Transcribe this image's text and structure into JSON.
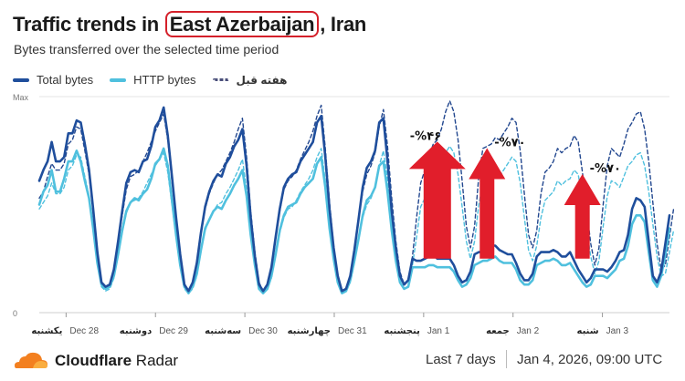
{
  "header": {
    "title_prefix": "Traffic trends in ",
    "title_highlight": "East Azerbaijan",
    "title_suffix": ", Iran",
    "subtitle": "Bytes transferred over the selected time period"
  },
  "legend": {
    "total": "Total bytes",
    "http": "HTTP bytes",
    "prev": "هفته قبل"
  },
  "footer": {
    "brand_bold": "Cloudflare",
    "brand_rest": " Radar",
    "range": "Last 7 days",
    "timestamp": "Jan 4, 2026, 09:00 UTC"
  },
  "colors": {
    "total": "#1f4e9c",
    "http": "#4fc0de",
    "prev_total": "#22478f",
    "prev_http": "#4fc0de",
    "arrow": "#e11e2b",
    "grid": "#e4e4e4",
    "logo": "#f38020"
  },
  "chart_data": {
    "type": "line",
    "ylim": [
      0,
      1
    ],
    "y_tick_labels": [
      "0",
      "Max"
    ],
    "x_tick_labels": [
      {
        "fa": "یکشنبه",
        "en": "Dec 28"
      },
      {
        "fa": "دوشنبه",
        "en": "Dec 29"
      },
      {
        "fa": "سه‌شنبه",
        "en": "Dec 30"
      },
      {
        "fa": "چهارشنبه",
        "en": "Dec 31"
      },
      {
        "fa": "پنجشنبه",
        "en": "Jan 1"
      },
      {
        "fa": "جمعه",
        "en": "Jan 2"
      },
      {
        "fa": "شنبه",
        "en": "Jan 3"
      }
    ],
    "series": [
      {
        "name": "Total bytes",
        "style": "solid",
        "values": [
          0.61,
          0.66,
          0.7,
          0.79,
          0.7,
          0.7,
          0.72,
          0.83,
          0.83,
          0.89,
          0.88,
          0.78,
          0.66,
          0.48,
          0.28,
          0.14,
          0.12,
          0.13,
          0.2,
          0.33,
          0.47,
          0.6,
          0.65,
          0.66,
          0.65,
          0.7,
          0.71,
          0.77,
          0.86,
          0.89,
          0.95,
          0.82,
          0.63,
          0.44,
          0.27,
          0.13,
          0.1,
          0.14,
          0.23,
          0.37,
          0.49,
          0.56,
          0.61,
          0.64,
          0.63,
          0.69,
          0.72,
          0.77,
          0.8,
          0.85,
          0.68,
          0.44,
          0.26,
          0.13,
          0.1,
          0.13,
          0.21,
          0.35,
          0.48,
          0.58,
          0.62,
          0.64,
          0.65,
          0.7,
          0.73,
          0.76,
          0.79,
          0.88,
          0.91,
          0.72,
          0.48,
          0.3,
          0.17,
          0.1,
          0.11,
          0.17,
          0.29,
          0.43,
          0.58,
          0.67,
          0.7,
          0.75,
          0.88,
          0.9,
          0.7,
          0.47,
          0.3,
          0.17,
          0.13,
          0.15,
          0.25,
          0.24,
          0.24,
          0.25,
          0.26,
          0.27,
          0.25,
          0.25,
          0.25,
          0.25,
          0.22,
          0.17,
          0.14,
          0.15,
          0.19,
          0.27,
          0.28,
          0.28,
          0.29,
          0.31,
          0.31,
          0.29,
          0.28,
          0.27,
          0.27,
          0.23,
          0.18,
          0.15,
          0.15,
          0.18,
          0.26,
          0.28,
          0.28,
          0.28,
          0.29,
          0.28,
          0.26,
          0.26,
          0.28,
          0.24,
          0.2,
          0.17,
          0.14,
          0.16,
          0.2,
          0.2,
          0.2,
          0.19,
          0.21,
          0.24,
          0.28,
          0.29,
          0.36,
          0.48,
          0.53,
          0.52,
          0.49,
          0.33,
          0.17,
          0.14,
          0.19,
          0.32,
          0.45
        ]
      },
      {
        "name": "HTTP bytes",
        "style": "solid",
        "values": [
          0.5,
          0.56,
          0.59,
          0.66,
          0.56,
          0.56,
          0.62,
          0.7,
          0.7,
          0.75,
          0.7,
          0.61,
          0.53,
          0.39,
          0.23,
          0.13,
          0.11,
          0.12,
          0.17,
          0.27,
          0.38,
          0.47,
          0.51,
          0.53,
          0.52,
          0.55,
          0.57,
          0.62,
          0.69,
          0.71,
          0.76,
          0.68,
          0.52,
          0.36,
          0.22,
          0.12,
          0.09,
          0.12,
          0.18,
          0.29,
          0.39,
          0.43,
          0.47,
          0.49,
          0.48,
          0.52,
          0.55,
          0.59,
          0.62,
          0.66,
          0.54,
          0.36,
          0.22,
          0.11,
          0.09,
          0.11,
          0.17,
          0.27,
          0.38,
          0.45,
          0.49,
          0.5,
          0.51,
          0.55,
          0.58,
          0.6,
          0.62,
          0.69,
          0.72,
          0.58,
          0.39,
          0.25,
          0.14,
          0.09,
          0.1,
          0.15,
          0.24,
          0.34,
          0.45,
          0.52,
          0.54,
          0.58,
          0.68,
          0.7,
          0.56,
          0.38,
          0.24,
          0.14,
          0.11,
          0.12,
          0.21,
          0.21,
          0.21,
          0.21,
          0.22,
          0.22,
          0.21,
          0.21,
          0.21,
          0.21,
          0.19,
          0.15,
          0.12,
          0.13,
          0.16,
          0.22,
          0.23,
          0.24,
          0.24,
          0.25,
          0.26,
          0.24,
          0.23,
          0.23,
          0.23,
          0.2,
          0.15,
          0.13,
          0.13,
          0.15,
          0.22,
          0.23,
          0.24,
          0.24,
          0.25,
          0.24,
          0.22,
          0.22,
          0.23,
          0.2,
          0.17,
          0.14,
          0.12,
          0.13,
          0.17,
          0.17,
          0.17,
          0.16,
          0.18,
          0.2,
          0.24,
          0.25,
          0.31,
          0.41,
          0.45,
          0.45,
          0.42,
          0.28,
          0.15,
          0.12,
          0.17,
          0.27,
          0.39
        ]
      },
      {
        "name": "هفته قبل",
        "style": "dashed",
        "values": [
          0.53,
          0.56,
          0.63,
          0.69,
          0.66,
          0.66,
          0.69,
          0.78,
          0.8,
          0.86,
          0.85,
          0.75,
          0.64,
          0.46,
          0.27,
          0.14,
          0.12,
          0.13,
          0.19,
          0.32,
          0.45,
          0.57,
          0.63,
          0.64,
          0.66,
          0.7,
          0.74,
          0.79,
          0.84,
          0.88,
          0.92,
          0.8,
          0.61,
          0.43,
          0.26,
          0.13,
          0.1,
          0.13,
          0.21,
          0.36,
          0.48,
          0.55,
          0.6,
          0.64,
          0.66,
          0.7,
          0.74,
          0.79,
          0.85,
          0.9,
          0.72,
          0.47,
          0.28,
          0.14,
          0.1,
          0.13,
          0.2,
          0.34,
          0.47,
          0.57,
          0.61,
          0.63,
          0.66,
          0.71,
          0.75,
          0.79,
          0.84,
          0.91,
          0.96,
          0.76,
          0.51,
          0.31,
          0.17,
          0.1,
          0.11,
          0.17,
          0.29,
          0.43,
          0.56,
          0.64,
          0.68,
          0.74,
          0.86,
          0.94,
          0.77,
          0.53,
          0.33,
          0.19,
          0.13,
          0.15,
          0.26,
          0.44,
          0.6,
          0.66,
          0.72,
          0.78,
          0.8,
          0.85,
          0.93,
          0.98,
          0.93,
          0.8,
          0.61,
          0.4,
          0.3,
          0.4,
          0.63,
          0.76,
          0.77,
          0.78,
          0.81,
          0.8,
          0.83,
          0.86,
          0.9,
          0.88,
          0.75,
          0.55,
          0.36,
          0.3,
          0.38,
          0.55,
          0.65,
          0.67,
          0.7,
          0.76,
          0.74,
          0.76,
          0.77,
          0.82,
          0.79,
          0.65,
          0.48,
          0.32,
          0.22,
          0.3,
          0.5,
          0.68,
          0.76,
          0.74,
          0.72,
          0.78,
          0.85,
          0.88,
          0.92,
          0.93,
          0.85,
          0.7,
          0.51,
          0.32,
          0.2,
          0.22,
          0.35,
          0.48
        ]
      },
      {
        "name": "هفته قبل (HTTP)",
        "style": "dashed",
        "values": [
          0.48,
          0.51,
          0.54,
          0.6,
          0.55,
          0.55,
          0.58,
          0.66,
          0.68,
          0.73,
          0.72,
          0.63,
          0.54,
          0.39,
          0.23,
          0.12,
          0.1,
          0.11,
          0.16,
          0.27,
          0.37,
          0.46,
          0.51,
          0.52,
          0.53,
          0.56,
          0.6,
          0.64,
          0.68,
          0.71,
          0.74,
          0.65,
          0.5,
          0.35,
          0.21,
          0.11,
          0.09,
          0.11,
          0.17,
          0.29,
          0.38,
          0.43,
          0.47,
          0.5,
          0.51,
          0.55,
          0.58,
          0.62,
          0.66,
          0.71,
          0.57,
          0.37,
          0.22,
          0.11,
          0.09,
          0.11,
          0.16,
          0.27,
          0.37,
          0.44,
          0.48,
          0.49,
          0.52,
          0.56,
          0.59,
          0.62,
          0.66,
          0.72,
          0.76,
          0.61,
          0.41,
          0.25,
          0.14,
          0.09,
          0.1,
          0.14,
          0.23,
          0.34,
          0.44,
          0.5,
          0.53,
          0.58,
          0.68,
          0.75,
          0.62,
          0.43,
          0.27,
          0.16,
          0.11,
          0.12,
          0.22,
          0.35,
          0.49,
          0.53,
          0.57,
          0.62,
          0.64,
          0.68,
          0.74,
          0.77,
          0.74,
          0.64,
          0.49,
          0.33,
          0.25,
          0.33,
          0.5,
          0.6,
          0.61,
          0.62,
          0.64,
          0.63,
          0.66,
          0.69,
          0.72,
          0.7,
          0.6,
          0.44,
          0.29,
          0.24,
          0.31,
          0.44,
          0.52,
          0.54,
          0.56,
          0.61,
          0.59,
          0.61,
          0.62,
          0.66,
          0.64,
          0.52,
          0.39,
          0.26,
          0.18,
          0.24,
          0.4,
          0.54,
          0.61,
          0.6,
          0.58,
          0.63,
          0.68,
          0.7,
          0.73,
          0.74,
          0.68,
          0.56,
          0.41,
          0.26,
          0.17,
          0.18,
          0.28,
          0.38
        ]
      }
    ],
    "annotations": [
      {
        "text": "-%۴۶",
        "index": 96
      },
      {
        "text": "-%۷۰",
        "index": 108
      },
      {
        "text": "-%۷۰",
        "index": 131
      }
    ]
  }
}
